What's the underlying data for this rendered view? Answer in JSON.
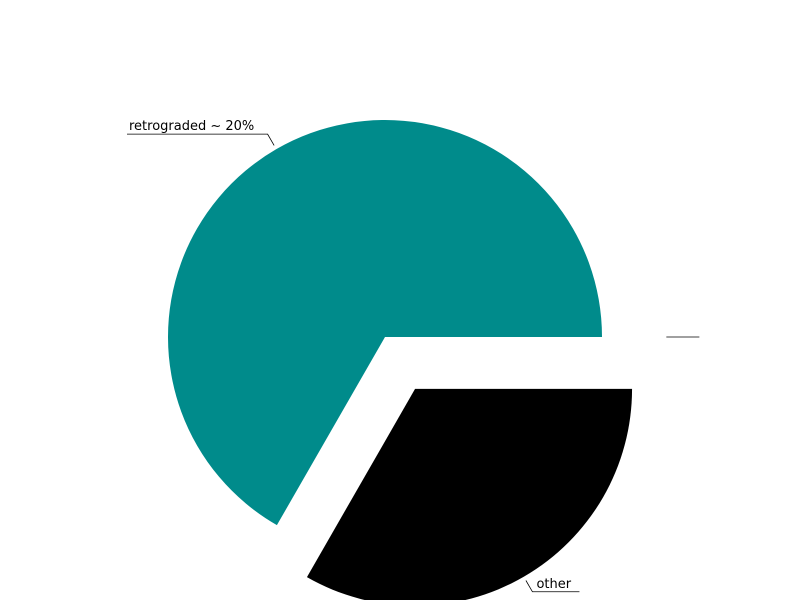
{
  "chart_data": {
    "type": "pie",
    "slices": [
      {
        "label": "retrograded ~ 20%",
        "value": 66.7,
        "color": "#008b8b",
        "exploded": false
      },
      {
        "label": "other",
        "value": 33.3,
        "color": "#000000",
        "exploded": true
      },
      {
        "label": "",
        "value": 0,
        "color": "#ffffff",
        "exploded": true
      }
    ],
    "start_angle_deg": 0,
    "direction": "counterclockwise",
    "legend": "none",
    "grid": false
  }
}
